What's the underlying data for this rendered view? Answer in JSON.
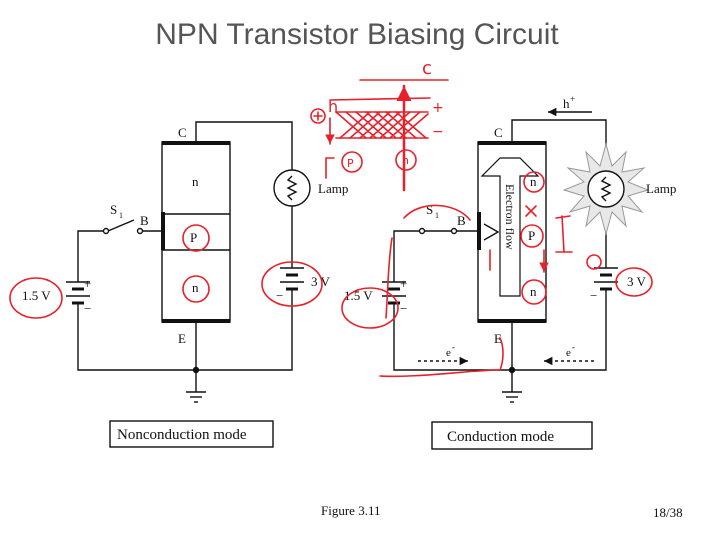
{
  "slide": {
    "title": "NPN Transistor Biasing Circuit",
    "figure_caption": "Figure 3.11",
    "page_number": "18/38"
  },
  "left_circuit": {
    "mode_label": "Nonconduction mode",
    "collector_label": "C",
    "emitter_label": "E",
    "base_label": "B",
    "switch_label": "S",
    "switch_subscript": "1",
    "region_top": "n",
    "region_mid": "P",
    "region_bottom": "n",
    "lamp_label": "Lamp",
    "battery_base_label": "1.5 V",
    "battery_collector_label": "3 V",
    "plus": "+",
    "minus": "−"
  },
  "right_circuit": {
    "mode_label": "Conduction mode",
    "collector_label": "C",
    "emitter_label": "E",
    "base_label": "B",
    "switch_label": "S",
    "switch_subscript": "1",
    "region_top": "n",
    "region_mid": "P",
    "region_bottom": "n",
    "electron_flow_label": "Electron flow",
    "lamp_label": "Lamp",
    "battery_base_label": "1.5 V",
    "battery_collector_label": "3 V",
    "hole_label": "h",
    "hole_superscript": "+",
    "electron_label_left": "e",
    "electron_label_right": "e",
    "electron_superscript": "-",
    "plus": "+",
    "minus": "−"
  },
  "annotations": {
    "ink_color": "#e8202a",
    "handwritten_c": "c",
    "handwritten_h": "h",
    "handwritten_p": "P",
    "handwritten_n": "n",
    "handwritten_cross": "×",
    "handwritten_plus": "+",
    "handwritten_minus": "−",
    "handwritten_circle_plus": "⊕"
  }
}
